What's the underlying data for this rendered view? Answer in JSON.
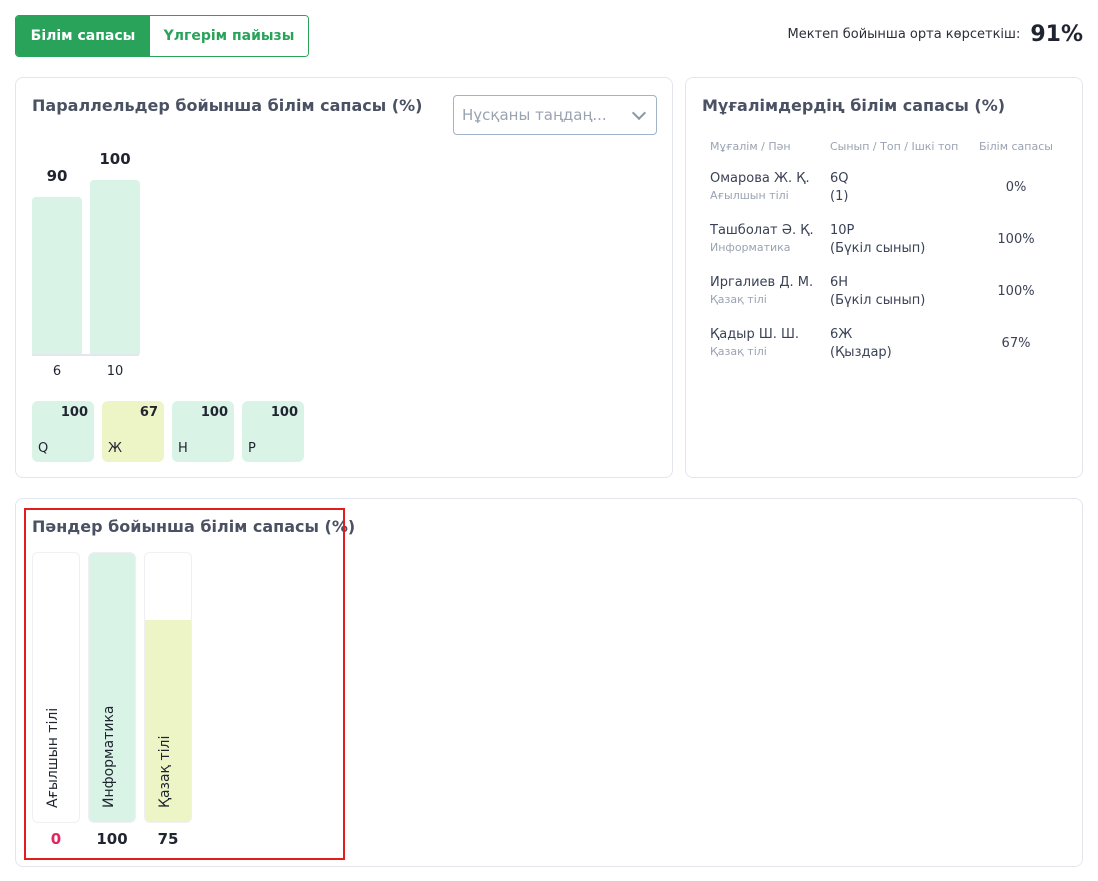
{
  "tabs": [
    {
      "label": "Білім сапасы",
      "active": true
    },
    {
      "label": "Үлгерім пайызы",
      "active": false
    }
  ],
  "school_average": {
    "label": "Мектеп бойынша орта көрсеткіш:",
    "value": "91%"
  },
  "parallel_card": {
    "title": "Параллельдер бойынша білім сапасы (%)",
    "select_placeholder": "Нұсқаны таңдаң...",
    "bars": [
      {
        "category": "6",
        "value": 90
      },
      {
        "category": "10",
        "value": 100
      }
    ],
    "sub_items": [
      {
        "name": "Q",
        "value": 100,
        "color": "#d9f3e6"
      },
      {
        "name": "Ж",
        "value": 67,
        "color": "#edf4c6"
      },
      {
        "name": "Н",
        "value": 100,
        "color": "#d9f3e6"
      },
      {
        "name": "Р",
        "value": 100,
        "color": "#d9f3e6"
      }
    ]
  },
  "teachers_card": {
    "title": "Мұғалімдердің білім сапасы (%)",
    "headers": [
      "Мұғалім / Пән",
      "Сынып / Топ / Ішкі топ",
      "Білім сапасы"
    ],
    "rows": [
      {
        "name": "Омарова Ж. Қ.",
        "subject": "Ағылшын тілі",
        "class": "6Q",
        "group": "(1)",
        "quality": "0%"
      },
      {
        "name": "Ташболат Ә. Қ.",
        "subject": "Информатика",
        "class": "10P",
        "group": "(Бүкіл сынып)",
        "quality": "100%"
      },
      {
        "name": "Иргалиев Д. М.",
        "subject": "Қазақ тілі",
        "class": "6Н",
        "group": "(Бүкіл сынып)",
        "quality": "100%"
      },
      {
        "name": "Қадыр Ш. Ш.",
        "subject": "Қазақ тілі",
        "class": "6Ж",
        "group": "(Қыздар)",
        "quality": "67%"
      }
    ]
  },
  "subjects_card": {
    "title": "Пәндер бойынша білім сапасы (%)",
    "items": [
      {
        "label": "Ағылшын тілі",
        "value": 0,
        "color": "#d9f3e6",
        "value_color": "#e0245e"
      },
      {
        "label": "Информатика",
        "value": 100,
        "color": "#d9f3e6",
        "value_color": "#1f2430"
      },
      {
        "label": "Қазақ тілі",
        "value": 75,
        "color": "#edf4c6",
        "value_color": "#1f2430"
      }
    ]
  },
  "colors": {
    "accent": "#2aa35a",
    "highlight": "#e11d1d"
  }
}
